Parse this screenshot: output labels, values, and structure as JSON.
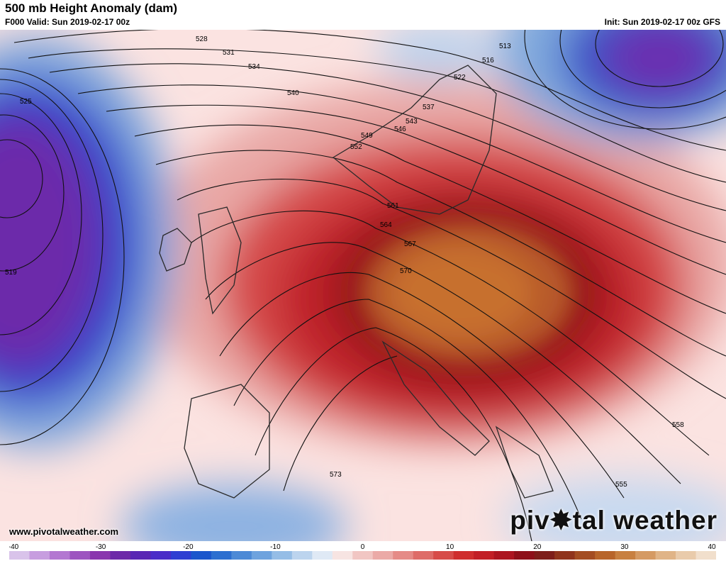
{
  "header": {
    "title": "500 mb Height Anomaly (dam)",
    "valid": "F000 Valid: Sun 2019-02-17 00z",
    "init": "Init: Sun 2019-02-17 00z GFS"
  },
  "footer": {
    "url": "www.pivotalweather.com",
    "brand_before": "piv",
    "brand_after": "tal weather"
  },
  "contour_labels": [
    "513",
    "516",
    "519",
    "522",
    "525",
    "528",
    "531",
    "534",
    "537",
    "540",
    "543",
    "546",
    "549",
    "552",
    "555",
    "558",
    "561",
    "564",
    "567",
    "570",
    "573"
  ],
  "colorbar": {
    "ticks": [
      "-40",
      "-30",
      "-20",
      "-10",
      "0",
      "10",
      "20",
      "30",
      "40"
    ],
    "min": -40,
    "max": 40,
    "colors": [
      "#d9c3ea",
      "#c79ddf",
      "#b377d1",
      "#9d54c0",
      "#8a36ae",
      "#6d29a8",
      "#5926b4",
      "#4a2cc8",
      "#2f3fd2",
      "#1b56cc",
      "#2c6fd0",
      "#4c8ad6",
      "#6ea3de",
      "#95bde6",
      "#bcd4ee",
      "#dfe9f5",
      "#f7e4e2",
      "#f1c6c3",
      "#ebaaa7",
      "#e58b87",
      "#de6c68",
      "#d74c49",
      "#cf2e2e",
      "#c21f26",
      "#ac1520",
      "#8e1019",
      "#7e1e1a",
      "#90341c",
      "#a44d22",
      "#b8652a",
      "#c88040",
      "#d59a63",
      "#e0b487",
      "#e9cbab",
      "#f1dfcc"
    ]
  },
  "colors": {
    "trough": "#5d2cc0",
    "ridge": "#b7202a",
    "ridge_core": "#c9652e",
    "neutral": "#ffffff"
  }
}
